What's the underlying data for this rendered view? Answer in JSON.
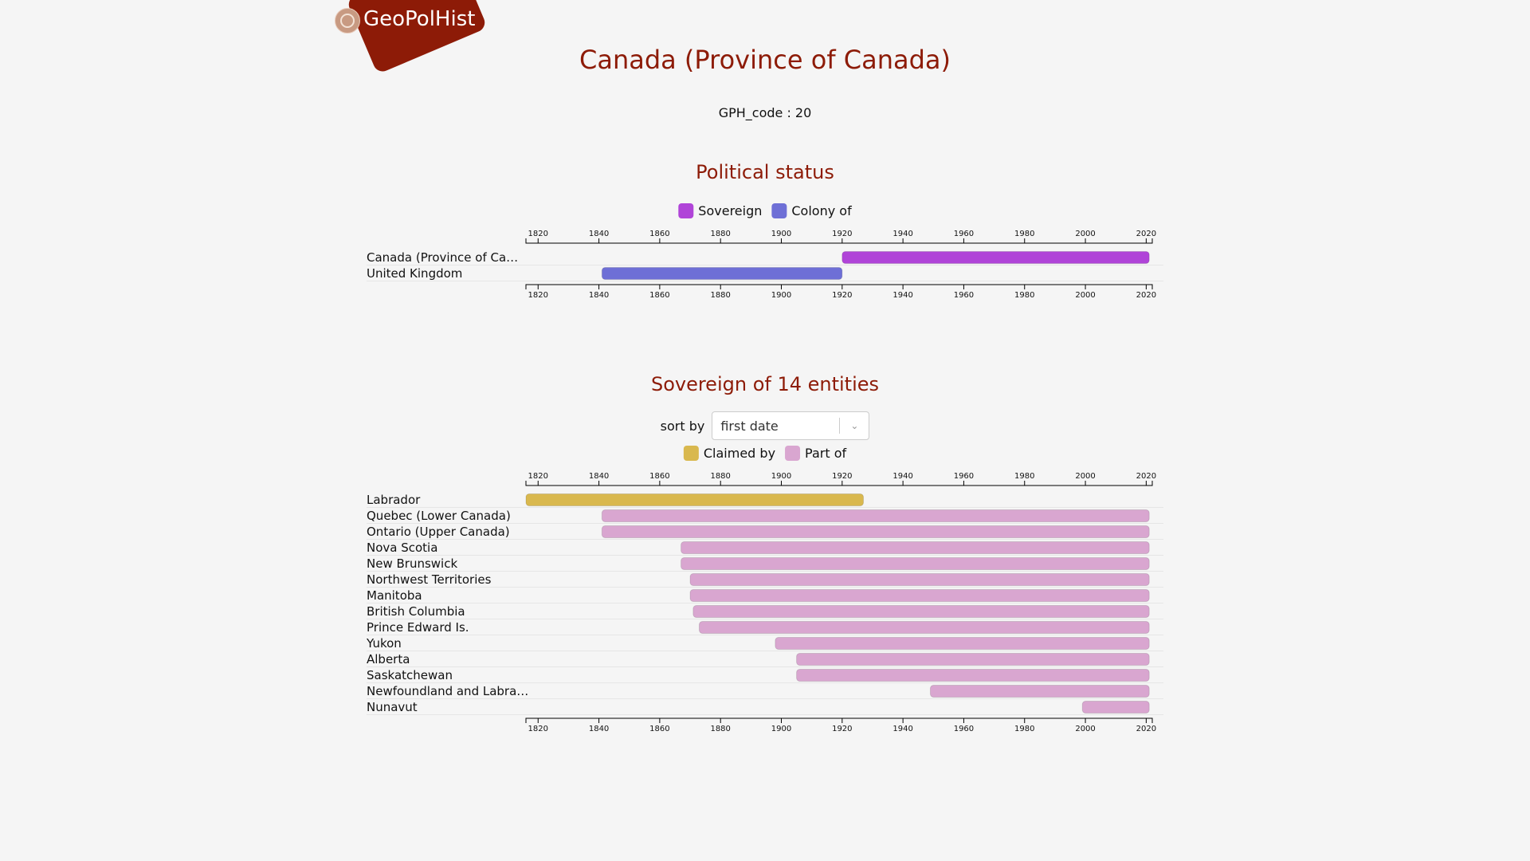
{
  "logo": {
    "name": "GeoPolHist"
  },
  "page": {
    "title": "Canada (Province of Canada)",
    "gph_code_label": "GPH_code : 20"
  },
  "political_status": {
    "heading": "Political status"
  },
  "sovereign_of": {
    "heading": "Sovereign of 14 entities",
    "sort_label": "sort by",
    "sort_value": "first date"
  },
  "colors": {
    "sovereign": "#b044d8",
    "colony": "#6e6fd6",
    "claimed": "#d9b84e",
    "part": "#d9a6d0",
    "accent": "#8d1b07"
  },
  "chart_data": [
    {
      "type": "timeline",
      "xlim": [
        1816,
        2022
      ],
      "x_ticks": [
        1820,
        1840,
        1860,
        1880,
        1900,
        1920,
        1940,
        1960,
        1980,
        2000,
        2020
      ],
      "legend": [
        {
          "label": "Sovereign",
          "color": "#b044d8"
        },
        {
          "label": "Colony of",
          "color": "#6e6fd6"
        }
      ],
      "rows": [
        {
          "label": "Canada (Province of Ca…",
          "start": 1920,
          "end": 2021,
          "status": "Sovereign"
        },
        {
          "label": "United Kingdom",
          "start": 1841,
          "end": 1920,
          "status": "Colony of"
        }
      ]
    },
    {
      "type": "timeline",
      "xlim": [
        1816,
        2022
      ],
      "x_ticks": [
        1820,
        1840,
        1860,
        1880,
        1900,
        1920,
        1940,
        1960,
        1980,
        2000,
        2020
      ],
      "legend": [
        {
          "label": "Claimed by",
          "color": "#d9b84e"
        },
        {
          "label": "Part of",
          "color": "#d9a6d0"
        }
      ],
      "rows": [
        {
          "label": "Labrador",
          "start": 1816,
          "end": 1927,
          "status": "Claimed by"
        },
        {
          "label": "Quebec (Lower Canada)",
          "start": 1841,
          "end": 2021,
          "status": "Part of"
        },
        {
          "label": "Ontario (Upper Canada)",
          "start": 1841,
          "end": 2021,
          "status": "Part of"
        },
        {
          "label": "Nova Scotia",
          "start": 1867,
          "end": 2021,
          "status": "Part of"
        },
        {
          "label": "New Brunswick",
          "start": 1867,
          "end": 2021,
          "status": "Part of"
        },
        {
          "label": "Northwest Territories",
          "start": 1870,
          "end": 2021,
          "status": "Part of"
        },
        {
          "label": "Manitoba",
          "start": 1870,
          "end": 2021,
          "status": "Part of"
        },
        {
          "label": "British Columbia",
          "start": 1871,
          "end": 2021,
          "status": "Part of"
        },
        {
          "label": "Prince Edward Is.",
          "start": 1873,
          "end": 2021,
          "status": "Part of"
        },
        {
          "label": "Yukon",
          "start": 1898,
          "end": 2021,
          "status": "Part of"
        },
        {
          "label": "Alberta",
          "start": 1905,
          "end": 2021,
          "status": "Part of"
        },
        {
          "label": "Saskatchewan",
          "start": 1905,
          "end": 2021,
          "status": "Part of"
        },
        {
          "label": "Newfoundland and Labra…",
          "start": 1949,
          "end": 2021,
          "status": "Part of"
        },
        {
          "label": "Nunavut",
          "start": 1999,
          "end": 2021,
          "status": "Part of"
        }
      ]
    }
  ]
}
